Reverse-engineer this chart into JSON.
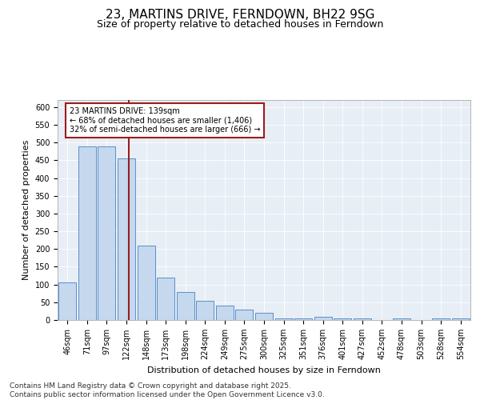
{
  "title1": "23, MARTINS DRIVE, FERNDOWN, BH22 9SG",
  "title2": "Size of property relative to detached houses in Ferndown",
  "xlabel": "Distribution of detached houses by size in Ferndown",
  "ylabel": "Number of detached properties",
  "categories": [
    "46sqm",
    "71sqm",
    "97sqm",
    "122sqm",
    "148sqm",
    "173sqm",
    "198sqm",
    "224sqm",
    "249sqm",
    "275sqm",
    "300sqm",
    "325sqm",
    "351sqm",
    "376sqm",
    "401sqm",
    "427sqm",
    "452sqm",
    "478sqm",
    "503sqm",
    "528sqm",
    "554sqm"
  ],
  "values": [
    105,
    490,
    490,
    455,
    210,
    120,
    80,
    55,
    40,
    30,
    20,
    5,
    5,
    10,
    5,
    5,
    0,
    5,
    0,
    5,
    5
  ],
  "bar_color": "#c5d8ed",
  "bar_edge_color": "#5b8fc9",
  "vline_color": "#9b1c1c",
  "annotation_text_line1": "23 MARTINS DRIVE: 139sqm",
  "annotation_text_line2": "← 68% of detached houses are smaller (1,406)",
  "annotation_text_line3": "32% of semi-detached houses are larger (666) →",
  "annotation_box_color": "#9b1c1c",
  "background_color": "#e8eef5",
  "ylim": [
    0,
    620
  ],
  "yticks": [
    0,
    50,
    100,
    150,
    200,
    250,
    300,
    350,
    400,
    450,
    500,
    550,
    600
  ],
  "footnote": "Contains HM Land Registry data © Crown copyright and database right 2025.\nContains public sector information licensed under the Open Government Licence v3.0.",
  "title_fontsize": 11,
  "subtitle_fontsize": 9,
  "label_fontsize": 8,
  "tick_fontsize": 7,
  "footnote_fontsize": 6.5
}
